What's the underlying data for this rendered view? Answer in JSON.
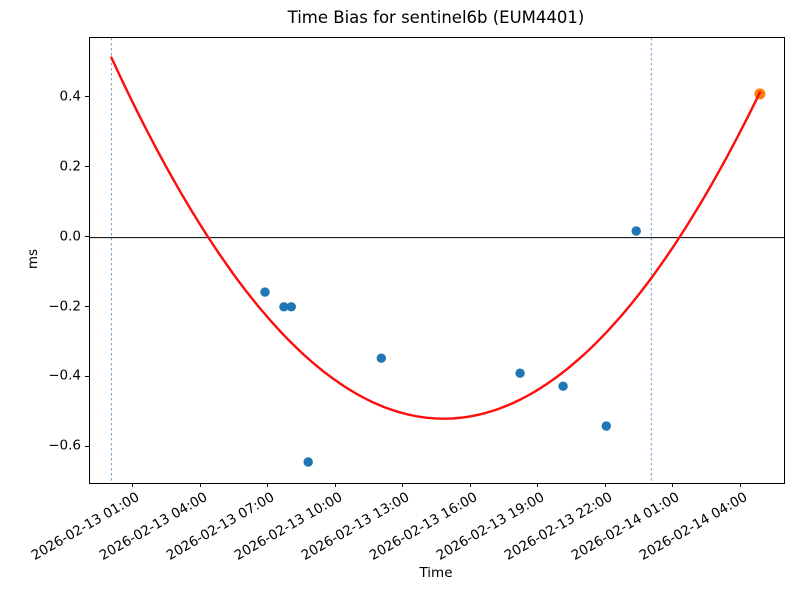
{
  "chart_data": {
    "type": "scatter",
    "title": "Time Bias for sentinel6b (EUM4401)",
    "xlabel": "Time",
    "ylabel": "ms",
    "grid": false,
    "legend": null,
    "x_axis": {
      "units": "hours since 2026-02-13 00:00",
      "xlim": [
        -0.95,
        29.9
      ],
      "ticks": [
        {
          "hours": 1,
          "label": "2026-02-13 01:00"
        },
        {
          "hours": 4,
          "label": "2026-02-13 04:00"
        },
        {
          "hours": 7,
          "label": "2026-02-13 07:00"
        },
        {
          "hours": 10,
          "label": "2026-02-13 10:00"
        },
        {
          "hours": 13,
          "label": "2026-02-13 13:00"
        },
        {
          "hours": 16,
          "label": "2026-02-13 16:00"
        },
        {
          "hours": 19,
          "label": "2026-02-13 19:00"
        },
        {
          "hours": 22,
          "label": "2026-02-13 22:00"
        },
        {
          "hours": 25,
          "label": "2026-02-14 01:00"
        },
        {
          "hours": 28,
          "label": "2026-02-14 04:00"
        }
      ]
    },
    "y_axis": {
      "ylim": [
        -0.702,
        0.571
      ],
      "ticks": [
        {
          "value": 0.4,
          "label": "0.4"
        },
        {
          "value": 0.2,
          "label": "0.2"
        },
        {
          "value": 0.0,
          "label": "0.0"
        },
        {
          "value": -0.2,
          "label": "−0.2"
        },
        {
          "value": -0.4,
          "label": "−0.4"
        },
        {
          "value": -0.6,
          "label": "−0.6"
        }
      ]
    },
    "series": [
      {
        "name": "measured-time-bias",
        "type": "scatter",
        "color": "#1f77b4",
        "marker_radius": 4.7,
        "points": [
          {
            "hours": 6.83,
            "time": "2026-02-13 06:50",
            "ms": -0.156
          },
          {
            "hours": 7.67,
            "time": "2026-02-13 07:40",
            "ms": -0.198
          },
          {
            "hours": 8.0,
            "time": "2026-02-13 08:00",
            "ms": -0.198
          },
          {
            "hours": 8.75,
            "time": "2026-02-13 08:45",
            "ms": -0.642
          },
          {
            "hours": 12.0,
            "time": "2026-02-13 12:00",
            "ms": -0.345
          },
          {
            "hours": 18.17,
            "time": "2026-02-13 18:10",
            "ms": -0.388
          },
          {
            "hours": 20.08,
            "time": "2026-02-13 20:05",
            "ms": -0.425
          },
          {
            "hours": 22.0,
            "time": "2026-02-13 22:00",
            "ms": -0.539
          },
          {
            "hours": 23.33,
            "time": "2026-02-13 23:20",
            "ms": 0.019
          }
        ]
      },
      {
        "name": "highlighted-latest-point",
        "type": "scatter",
        "color": "#ff7f0e",
        "marker_radius": 5.5,
        "points": [
          {
            "hours": 28.83,
            "time": "2026-02-14 04:50",
            "ms": 0.411
          }
        ]
      },
      {
        "name": "quadratic-fit",
        "type": "line",
        "color": "#ff0c0c",
        "line_width": 2.4,
        "fit": {
          "form": "ms = a*t^2 + b*t + c, t in hours since 2026-02-13 00:00",
          "a": 0.00473,
          "b": -0.1398,
          "c": 0.515,
          "t_start": 0,
          "t_end": 28.83
        }
      }
    ],
    "vlines": [
      {
        "hours": 0,
        "time": "2026-02-13 00:00"
      },
      {
        "hours": 24,
        "time": "2026-02-14 00:00"
      }
    ],
    "zero_line": {
      "ms": 0.0
    },
    "colors": {
      "vline": "#6ba2d0",
      "zero_line": "#000000",
      "spine": "#000000",
      "background": "#ffffff"
    }
  }
}
